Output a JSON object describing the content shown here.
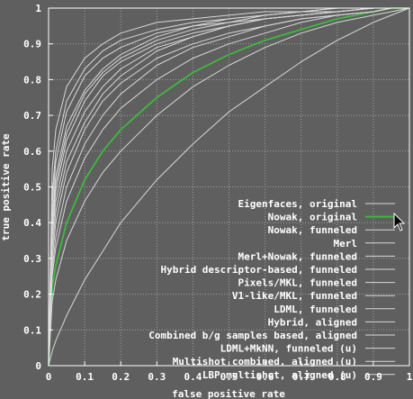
{
  "chart_data": {
    "type": "line",
    "title": "",
    "xlabel": "false positive rate",
    "ylabel": "true positive rate",
    "xlim": [
      0,
      1
    ],
    "ylim": [
      0,
      1
    ],
    "xticks": [
      "0",
      "0.1",
      "0.2",
      "0.3",
      "0.4",
      "0.5",
      "0.6",
      "0.7",
      "0.8",
      "0.9",
      "1"
    ],
    "yticks": [
      "0",
      "0.1",
      "0.2",
      "0.3",
      "0.4",
      "0.5",
      "0.6",
      "0.7",
      "0.8",
      "0.9",
      "1"
    ],
    "grid": true,
    "legend_position": "bottom-right",
    "colors": {
      "background": "#5f5f5f",
      "grid": "#a0a0a0",
      "axis": "#ffffff",
      "series": "#d8d8d8",
      "highlight": "#3fb83f"
    },
    "x": [
      0,
      0.01,
      0.02,
      0.05,
      0.1,
      0.15,
      0.2,
      0.3,
      0.4,
      0.5,
      0.6,
      0.7,
      0.8,
      0.9,
      0.95,
      1
    ],
    "series": [
      {
        "name": "Eigenfaces, original",
        "values": [
          0,
          0.04,
          0.07,
          0.14,
          0.24,
          0.32,
          0.4,
          0.52,
          0.62,
          0.71,
          0.78,
          0.85,
          0.91,
          0.96,
          0.98,
          1
        ]
      },
      {
        "name": "Nowak, original",
        "values": [
          0,
          0.22,
          0.28,
          0.4,
          0.52,
          0.6,
          0.66,
          0.75,
          0.82,
          0.87,
          0.91,
          0.94,
          0.97,
          0.99,
          1.0,
          1
        ]
      },
      {
        "name": "Nowak, funneled",
        "values": [
          0,
          0.25,
          0.33,
          0.46,
          0.58,
          0.66,
          0.72,
          0.8,
          0.86,
          0.9,
          0.93,
          0.96,
          0.98,
          0.99,
          1.0,
          1
        ]
      },
      {
        "name": "Merl",
        "values": [
          0,
          0.18,
          0.24,
          0.35,
          0.46,
          0.54,
          0.6,
          0.7,
          0.78,
          0.84,
          0.89,
          0.93,
          0.96,
          0.98,
          0.99,
          1
        ]
      },
      {
        "name": "Merl+Nowak, funneled",
        "values": [
          0,
          0.3,
          0.4,
          0.54,
          0.66,
          0.74,
          0.79,
          0.86,
          0.9,
          0.93,
          0.95,
          0.97,
          0.98,
          0.99,
          1.0,
          1
        ]
      },
      {
        "name": "Hybrid descriptor-based, funneled",
        "values": [
          0,
          0.36,
          0.46,
          0.6,
          0.71,
          0.78,
          0.83,
          0.89,
          0.92,
          0.95,
          0.97,
          0.98,
          0.99,
          1.0,
          1.0,
          1
        ]
      },
      {
        "name": "Pixels/MKL, funneled",
        "values": [
          0,
          0.27,
          0.36,
          0.5,
          0.62,
          0.7,
          0.76,
          0.84,
          0.89,
          0.92,
          0.95,
          0.97,
          0.98,
          0.99,
          1.0,
          1
        ]
      },
      {
        "name": "V1-like/MKL, funneled",
        "values": [
          0,
          0.33,
          0.43,
          0.57,
          0.68,
          0.76,
          0.81,
          0.88,
          0.92,
          0.95,
          0.97,
          0.98,
          0.99,
          1.0,
          1.0,
          1
        ]
      },
      {
        "name": "LDML, funneled",
        "values": [
          0,
          0.38,
          0.49,
          0.63,
          0.74,
          0.81,
          0.85,
          0.9,
          0.93,
          0.95,
          0.97,
          0.98,
          0.99,
          1.0,
          1.0,
          1
        ]
      },
      {
        "name": "Hybrid, aligned",
        "values": [
          0,
          0.45,
          0.57,
          0.71,
          0.81,
          0.86,
          0.89,
          0.93,
          0.95,
          0.97,
          0.98,
          0.99,
          0.99,
          1.0,
          1.0,
          1
        ]
      },
      {
        "name": "Combined b/g samples based, aligned",
        "values": [
          0,
          0.48,
          0.6,
          0.74,
          0.83,
          0.88,
          0.91,
          0.94,
          0.96,
          0.97,
          0.98,
          0.99,
          1.0,
          1.0,
          1.0,
          1
        ]
      },
      {
        "name": "LDML+MkNN, funneled (u)",
        "values": [
          0,
          0.42,
          0.53,
          0.67,
          0.77,
          0.83,
          0.87,
          0.92,
          0.95,
          0.96,
          0.98,
          0.99,
          0.99,
          1.0,
          1.0,
          1
        ]
      },
      {
        "name": "Multishot combined, aligned (u)",
        "values": [
          0,
          0.55,
          0.66,
          0.78,
          0.86,
          0.9,
          0.93,
          0.96,
          0.97,
          0.98,
          0.99,
          0.99,
          1.0,
          1.0,
          1.0,
          1
        ]
      },
      {
        "name": "LBP multishot, aligned (u)",
        "values": [
          0,
          0.4,
          0.51,
          0.65,
          0.76,
          0.82,
          0.86,
          0.91,
          0.94,
          0.96,
          0.97,
          0.98,
          0.99,
          1.0,
          1.0,
          1
        ]
      }
    ],
    "highlight_series": "Nowak, original"
  }
}
